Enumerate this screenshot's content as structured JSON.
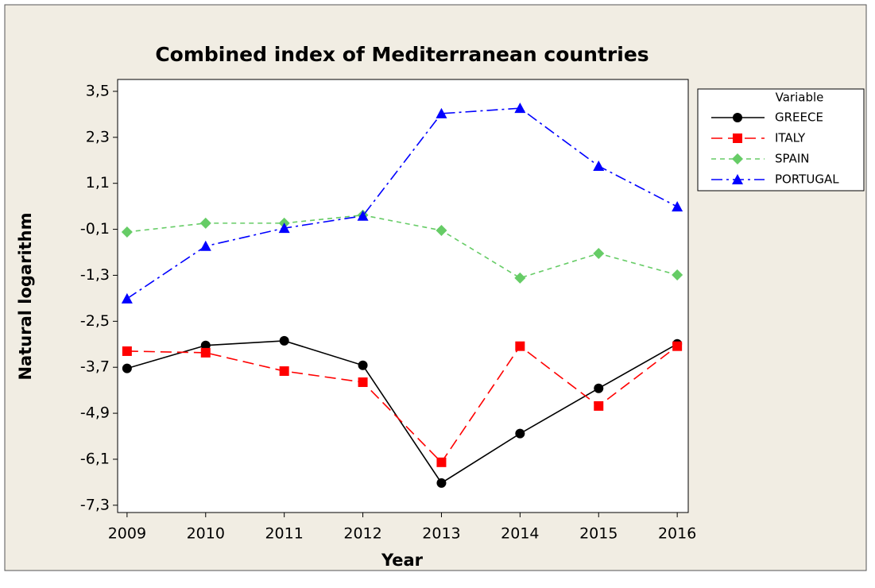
{
  "chart_data": {
    "type": "line",
    "title": "Combined index of Mediterranean countries",
    "x_label": "Year",
    "y_label": "Natural logarithm",
    "legend_title": "Variable",
    "legend": "right",
    "x": [
      2009,
      2010,
      2011,
      2012,
      2013,
      2014,
      2015,
      2016
    ],
    "xlim": [
      2008.88,
      2016.14
    ],
    "xticks": [
      2009,
      2010,
      2011,
      2012,
      2013,
      2014,
      2015,
      2016
    ],
    "ylim": [
      -7.49,
      3.81
    ],
    "yticks": [
      {
        "value": 3.5,
        "label": "3,5"
      },
      {
        "value": 2.3,
        "label": "2,3"
      },
      {
        "value": 1.1,
        "label": "1,1"
      },
      {
        "value": -0.1,
        "label": "-0,1"
      },
      {
        "value": -1.3,
        "label": "-1,3"
      },
      {
        "value": -2.5,
        "label": "-2,5"
      },
      {
        "value": -3.7,
        "label": "-3,7"
      },
      {
        "value": -4.9,
        "label": "-4,9"
      },
      {
        "value": -6.1,
        "label": "-6,1"
      },
      {
        "value": -7.3,
        "label": "-7,3"
      }
    ],
    "series": [
      {
        "name": "GREECE",
        "color": "#000000",
        "marker": "circle",
        "linestyle": "solid",
        "values": [
          -3.73,
          -3.13,
          -3.01,
          -3.65,
          -6.72,
          -5.43,
          -4.25,
          -3.09
        ]
      },
      {
        "name": "ITALY",
        "color": "#ff0000",
        "marker": "square",
        "linestyle": "dashed",
        "values": [
          -3.28,
          -3.32,
          -3.8,
          -4.09,
          -6.18,
          -3.15,
          -4.71,
          -3.15
        ]
      },
      {
        "name": "SPAIN",
        "color": "#66cc66",
        "marker": "diamond",
        "linestyle": "shortdash",
        "values": [
          -0.17,
          0.06,
          0.06,
          0.27,
          -0.13,
          -1.37,
          -0.73,
          -1.29
        ]
      },
      {
        "name": "PORTUGAL",
        "color": "#0000ff",
        "marker": "triangle",
        "linestyle": "dashdot",
        "values": [
          -1.91,
          -0.54,
          -0.07,
          0.25,
          2.92,
          3.06,
          1.55,
          0.49
        ]
      }
    ]
  }
}
